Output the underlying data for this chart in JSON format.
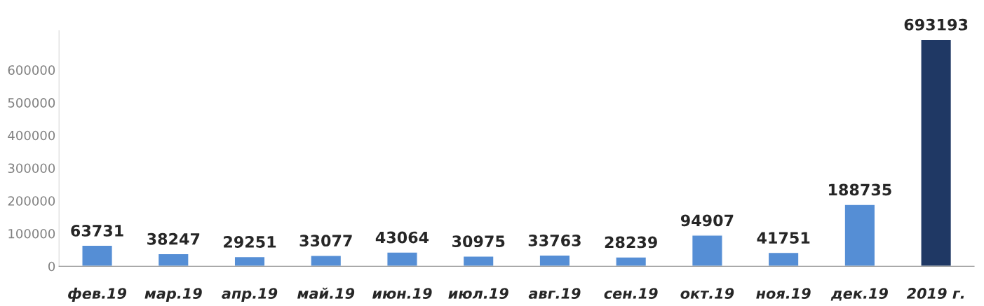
{
  "chart_data": {
    "type": "bar",
    "categories": [
      "фев.19",
      "мар.19",
      "апр.19",
      "май.19",
      "июн.19",
      "июл.19",
      "авг.19",
      "сен.19",
      "окт.19",
      "ноя.19",
      "дек.19",
      "2019 г."
    ],
    "values": [
      63731,
      38247,
      29251,
      33077,
      43064,
      30975,
      33763,
      28239,
      94907,
      41751,
      188735,
      693193
    ],
    "colors": [
      "#558ed5",
      "#558ed5",
      "#558ed5",
      "#558ed5",
      "#558ed5",
      "#558ed5",
      "#558ed5",
      "#558ed5",
      "#558ed5",
      "#558ed5",
      "#558ed5",
      "#1f3864"
    ],
    "ylim": [
      0,
      720000
    ],
    "yticks": [
      0,
      100000,
      200000,
      300000,
      400000,
      500000,
      600000
    ],
    "data_labels": true,
    "grid": false,
    "legend": false
  }
}
